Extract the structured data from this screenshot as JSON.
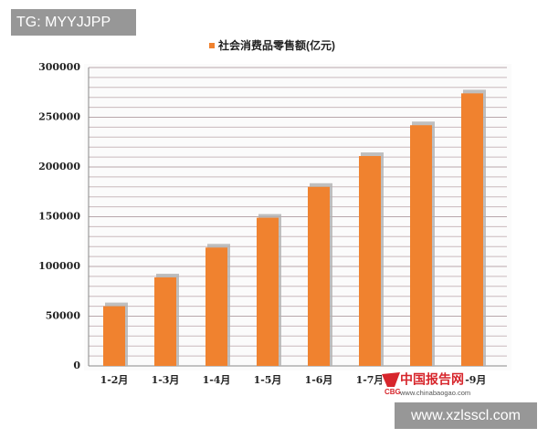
{
  "chart_data": {
    "type": "bar",
    "categories": [
      "1-2月",
      "1-3月",
      "1-4月",
      "1-5月",
      "1-6月",
      "1-7月",
      "1-8月",
      "1-9月"
    ],
    "series": [
      {
        "name": "社会消费品零售额(亿元)",
        "color": "#f0822f",
        "values": [
          60000,
          89000,
          119000,
          149000,
          180000,
          211000,
          242000,
          274000
        ]
      }
    ],
    "ylim": [
      0,
      300000
    ],
    "yticks": [
      0,
      50000,
      100000,
      150000,
      200000,
      250000,
      300000
    ],
    "minor_yticks": [
      10000,
      20000,
      30000,
      40000,
      60000,
      70000,
      80000,
      90000,
      110000,
      120000,
      130000,
      140000,
      160000,
      170000,
      180000,
      190000,
      210000,
      220000,
      230000,
      240000,
      260000,
      270000,
      280000,
      290000
    ],
    "grid": true,
    "legend": "top"
  },
  "watermarks": {
    "top_left": "TG: MYYJJPP",
    "logo_title": "中国报告网",
    "logo_url": "www.chinabaogao.com",
    "logo_badge": "CBG",
    "bottom_right": "www.xzlsscl.com"
  }
}
